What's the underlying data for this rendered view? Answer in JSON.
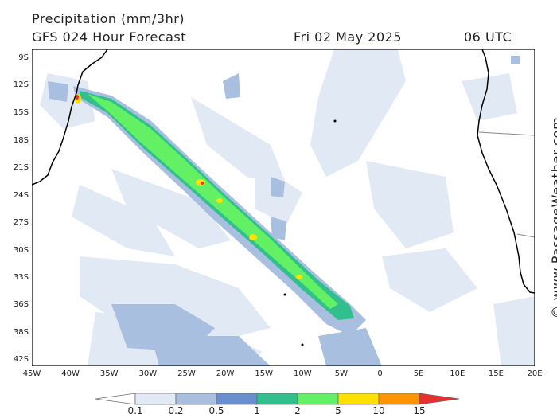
{
  "header": {
    "title": "Precipitation (mm/3hr)",
    "subtitle": "GFS 024 Hour Forecast",
    "date": "Fri 02 May 2025",
    "time": "06 UTC"
  },
  "map": {
    "lat_labels": [
      "9S",
      "12S",
      "15S",
      "18S",
      "21S",
      "24S",
      "27S",
      "30S",
      "33S",
      "36S",
      "38S",
      "42S"
    ],
    "lon_labels": [
      "45W",
      "40W",
      "35W",
      "30W",
      "25W",
      "20W",
      "15W",
      "10W",
      "5W",
      "0",
      "5E",
      "10E",
      "15E",
      "20E"
    ],
    "credit": "© www.PassageWeather.com",
    "colors": {
      "ocean": "#ffffff",
      "coast": "#000000",
      "border": "#888888"
    }
  },
  "legend": {
    "labels": [
      "0.1",
      "0.2",
      "0.5",
      "1",
      "2",
      "5",
      "10",
      "15"
    ],
    "colors": [
      "#ffffff",
      "#e1e9f5",
      "#a9bfe0",
      "#6a8fd1",
      "#31c08d",
      "#64f064",
      "#ffe000",
      "#ff9400",
      "#e83030"
    ]
  }
}
